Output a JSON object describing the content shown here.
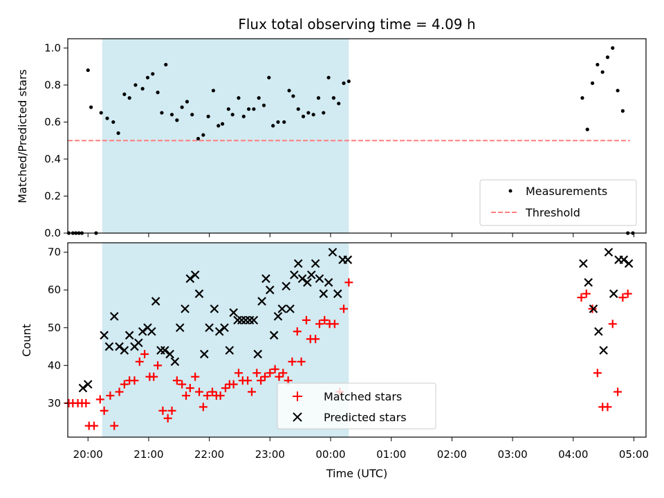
{
  "colors": {
    "shade": "#add8e6",
    "measurement": "#000000",
    "threshold": "#ff7f7f",
    "matched": "#ff0000",
    "predicted": "#000000"
  },
  "chart_data": [
    {
      "type": "scatter",
      "title": "Flux total observing time = 4.09 h",
      "xlabel": "",
      "ylabel": "Matched/Predicted stars",
      "xlim": [
        "19:40",
        "05:12"
      ],
      "ylim": [
        0,
        1.05
      ],
      "yticks": [
        0.0,
        0.2,
        0.4,
        0.6,
        0.8,
        1.0
      ],
      "ytick_labels": [
        "0.0",
        "0.2",
        "0.4",
        "0.6",
        "0.8",
        "1.0"
      ],
      "legend_position": "lower right",
      "shaded_region": [
        "20:14",
        "00:18"
      ],
      "threshold": {
        "name": "Threshold",
        "value": 0.5,
        "x": [
          "19:40",
          "04:56"
        ]
      },
      "series": [
        {
          "name": "Measurements",
          "x": [
            "19:41",
            "19:45",
            "19:48",
            "19:51",
            "19:54",
            "20:00",
            "20:03",
            "20:08",
            "20:13",
            "20:19",
            "20:25",
            "20:30",
            "20:36",
            "20:41",
            "20:47",
            "20:54",
            "20:59",
            "21:04",
            "21:09",
            "21:13",
            "21:17",
            "21:23",
            "21:28",
            "21:33",
            "21:38",
            "21:43",
            "21:49",
            "21:54",
            "21:59",
            "22:04",
            "22:09",
            "22:13",
            "22:19",
            "22:23",
            "22:29",
            "22:34",
            "22:39",
            "22:44",
            "22:49",
            "22:54",
            "22:59",
            "23:03",
            "23:08",
            "23:14",
            "23:19",
            "23:23",
            "23:28",
            "23:33",
            "23:38",
            "23:43",
            "23:48",
            "23:53",
            "23:58",
            "00:03",
            "00:08",
            "00:13",
            "00:18",
            "04:09",
            "04:14",
            "04:19",
            "04:24",
            "04:29",
            "04:34",
            "04:39",
            "04:44",
            "04:49",
            "04:54",
            "04:59"
          ],
          "y": [
            0.0,
            0.0,
            0.0,
            0.0,
            0.0,
            0.88,
            0.68,
            0.0,
            0.65,
            0.62,
            0.6,
            0.54,
            0.75,
            0.73,
            0.8,
            0.78,
            0.84,
            0.86,
            0.76,
            0.65,
            0.91,
            0.64,
            0.61,
            0.68,
            0.71,
            0.64,
            0.51,
            0.53,
            0.63,
            0.77,
            0.58,
            0.59,
            0.67,
            0.64,
            0.73,
            0.63,
            0.67,
            0.67,
            0.73,
            0.69,
            0.84,
            0.58,
            0.6,
            0.6,
            0.77,
            0.74,
            0.67,
            0.63,
            0.65,
            0.64,
            0.73,
            0.65,
            0.84,
            0.73,
            0.7,
            0.81,
            0.82,
            0.73,
            0.56,
            0.81,
            0.91,
            0.87,
            0.95,
            1.0,
            0.77,
            0.66,
            0.0,
            0.0
          ]
        }
      ]
    },
    {
      "type": "scatter",
      "title": "",
      "xlabel": "Time (UTC)",
      "ylabel": "Count",
      "xlim": [
        "19:40",
        "05:12"
      ],
      "ylim": [
        21,
        72.5
      ],
      "yticks": [
        30,
        40,
        50,
        60,
        70
      ],
      "ytick_labels": [
        "30",
        "40",
        "50",
        "60",
        "70"
      ],
      "xticks": [
        "20:00",
        "21:00",
        "22:00",
        "23:00",
        "00:00",
        "01:00",
        "02:00",
        "03:00",
        "04:00",
        "05:00"
      ],
      "legend_position": "lower center",
      "shaded_region": [
        "20:14",
        "00:18"
      ],
      "series": [
        {
          "name": "Matched stars",
          "marker": "plus",
          "x": [
            "19:41",
            "19:45",
            "19:50",
            "19:54",
            "19:58",
            "20:01",
            "20:06",
            "20:12",
            "20:16",
            "20:22",
            "20:26",
            "20:31",
            "20:36",
            "20:41",
            "20:46",
            "20:51",
            "20:56",
            "21:01",
            "21:05",
            "21:09",
            "21:14",
            "21:19",
            "21:23",
            "21:28",
            "21:33",
            "21:37",
            "21:41",
            "21:46",
            "21:50",
            "21:54",
            "21:58",
            "22:03",
            "22:07",
            "22:11",
            "22:16",
            "22:20",
            "22:24",
            "22:29",
            "22:33",
            "22:38",
            "22:42",
            "22:47",
            "22:51",
            "22:55",
            "23:00",
            "23:05",
            "23:09",
            "23:13",
            "23:18",
            "23:22",
            "23:27",
            "23:31",
            "23:36",
            "23:40",
            "23:45",
            "23:49",
            "23:54",
            "23:59",
            "00:04",
            "00:09",
            "00:13",
            "00:18",
            "04:08",
            "04:13",
            "04:19",
            "04:24",
            "04:29",
            "04:34",
            "04:39",
            "04:44",
            "04:49",
            "04:54"
          ],
          "y": [
            30,
            30,
            30,
            30,
            30,
            24,
            24,
            31,
            28,
            32,
            24,
            33,
            35,
            36,
            36,
            41,
            43,
            37,
            37,
            40,
            28,
            26,
            28,
            36,
            35,
            32,
            34,
            37,
            33,
            29,
            32,
            33,
            32,
            32,
            34,
            35,
            35,
            38,
            36,
            36,
            33,
            38,
            36,
            37,
            38,
            39,
            37,
            38,
            36,
            41,
            49,
            41,
            52,
            47,
            47,
            51,
            52,
            51,
            51,
            33,
            55,
            62,
            58,
            59,
            55,
            38,
            29,
            29,
            51,
            33,
            58,
            59
          ]
        },
        {
          "name": "Predicted stars",
          "marker": "cross",
          "x": [
            "19:55",
            "20:00",
            "20:16",
            "20:21",
            "20:26",
            "20:31",
            "20:36",
            "20:41",
            "20:46",
            "20:50",
            "20:54",
            "20:59",
            "21:03",
            "21:07",
            "21:12",
            "21:16",
            "21:21",
            "21:26",
            "21:31",
            "21:36",
            "21:41",
            "21:46",
            "21:50",
            "21:55",
            "22:00",
            "22:05",
            "22:10",
            "22:15",
            "22:20",
            "22:24",
            "22:28",
            "22:32",
            "22:36",
            "22:40",
            "22:44",
            "22:48",
            "22:52",
            "22:56",
            "23:00",
            "23:04",
            "23:08",
            "23:12",
            "23:16",
            "23:20",
            "23:24",
            "23:28",
            "23:32",
            "23:37",
            "23:41",
            "23:45",
            "23:49",
            "23:53",
            "23:58",
            "00:02",
            "00:07",
            "00:12",
            "00:17",
            "04:10",
            "04:15",
            "04:20",
            "04:25",
            "04:30",
            "04:35",
            "04:40",
            "04:45",
            "04:50",
            "04:55"
          ],
          "y": [
            34,
            35,
            48,
            45,
            53,
            45,
            44,
            48,
            45,
            46,
            49,
            50,
            49,
            57,
            44,
            44,
            43,
            41,
            50,
            55,
            63,
            64,
            59,
            43,
            50,
            55,
            49,
            50,
            44,
            54,
            52,
            52,
            52,
            52,
            52,
            43,
            57,
            63,
            60,
            48,
            53,
            55,
            61,
            55,
            64,
            67,
            63,
            62,
            64,
            67,
            63,
            59,
            62,
            70,
            59,
            68,
            68,
            67,
            62,
            55,
            49,
            44,
            70,
            59,
            68,
            68,
            67
          ]
        }
      ]
    }
  ]
}
